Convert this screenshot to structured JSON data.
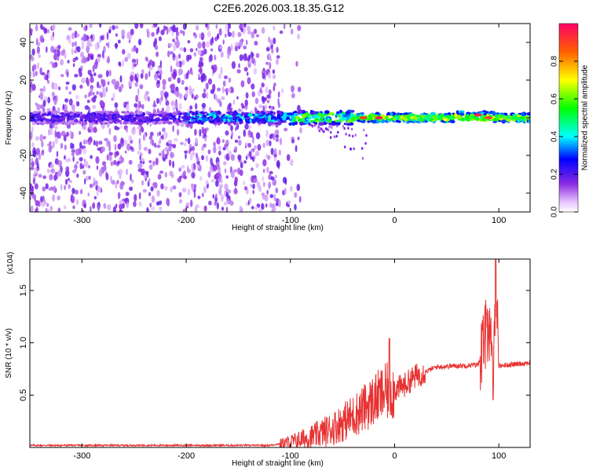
{
  "title": "C2E6.2026.003.18.35.G12",
  "chart_data": [
    {
      "type": "heatmap",
      "xlabel": "Height of straight line (km)",
      "ylabel": "Frequency (Hz)",
      "xlim": [
        -350,
        130
      ],
      "ylim": [
        -50,
        50
      ],
      "xticks": [
        -300,
        -200,
        -100,
        0,
        100
      ],
      "yticks": [
        -40,
        -20,
        0,
        20,
        40
      ],
      "colorbar": {
        "label": "Normalized spectral amplitude",
        "range": [
          0,
          1
        ],
        "ticks": [
          "0.0",
          "0.2",
          "0.4",
          "0.6",
          "0.8"
        ]
      },
      "description_points": [
        {
          "x": -245,
          "y": -3,
          "amp": 0.15
        },
        {
          "x": -100,
          "y": 2,
          "amp": 0.3
        },
        {
          "x": -30,
          "y": 0,
          "amp": 0.9
        },
        {
          "x": -15,
          "y": 0,
          "amp": 0.95
        },
        {
          "x": 80,
          "y": 1.5,
          "amp": 0.95
        },
        {
          "x": 90,
          "y": 0,
          "amp": 0.9
        }
      ]
    },
    {
      "type": "line",
      "xlabel": "Height of straight line (km)",
      "ylabel": "SNR (10 * v/v)",
      "y_multiplier_label": "(x10^4)",
      "xlim": [
        -350,
        130
      ],
      "ylim": [
        0,
        1.8
      ],
      "xticks": [
        -300,
        -200,
        -100,
        0,
        100
      ],
      "yticks": [
        "0.5",
        "1.0",
        "1.5"
      ],
      "color": "#e83232",
      "series": [
        {
          "name": "SNR",
          "x": [
            -350,
            -300,
            -200,
            -120,
            -100,
            -80,
            -60,
            -40,
            -30,
            -20,
            -10,
            0,
            10,
            20,
            40,
            60,
            80,
            85,
            90,
            95,
            97,
            100,
            110,
            120,
            130
          ],
          "y": [
            0.02,
            0.02,
            0.02,
            0.02,
            0.05,
            0.1,
            0.18,
            0.3,
            0.37,
            0.45,
            0.52,
            0.55,
            0.6,
            0.68,
            0.77,
            0.78,
            0.79,
            0.95,
            1.2,
            0.6,
            1.75,
            0.78,
            0.79,
            0.8,
            0.81
          ],
          "peaks": [
            {
              "x": -5,
              "y": 1.04
            },
            {
              "x": 97,
              "y": 1.8
            },
            {
              "x": 88,
              "y": 1.28
            }
          ]
        }
      ]
    }
  ]
}
